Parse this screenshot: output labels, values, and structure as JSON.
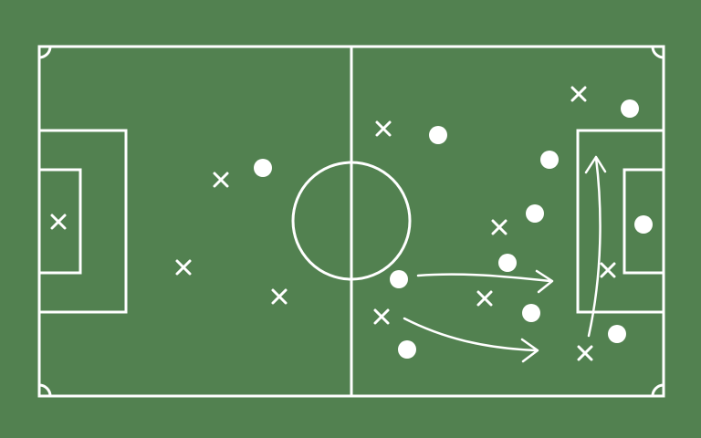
{
  "colors": {
    "pitch": "#528150",
    "lines": "#ffffff",
    "team_circle": "#ffffff",
    "team_cross": "#ffffff",
    "arrows": "#ffffff"
  },
  "icons": {
    "circle_player": "filled-circle-icon",
    "cross_player": "x-mark-icon"
  }
}
